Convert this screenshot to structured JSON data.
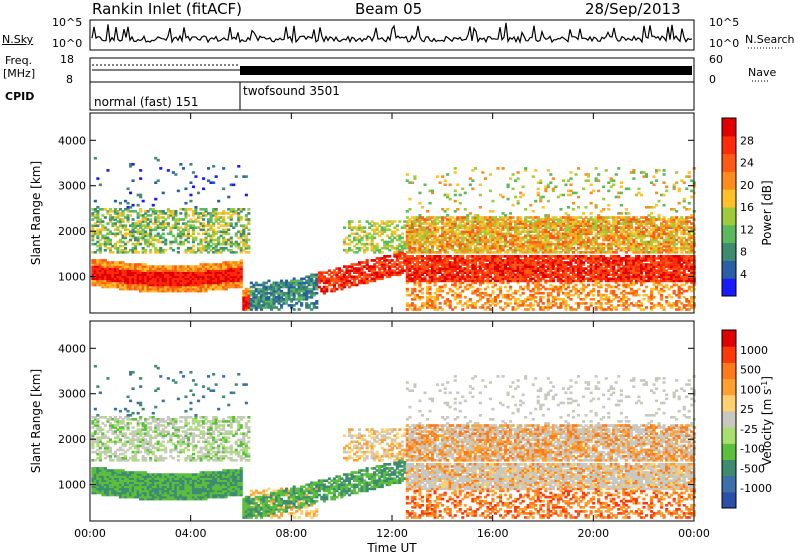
{
  "header": {
    "station": "Rankin Inlet (fitACF)",
    "beam": "Beam 05",
    "date": "28/Sep/2013"
  },
  "summary_panels": {
    "nsky_label": "N.Sky",
    "nsearch_label": "N.Search",
    "nsky_ticks": [
      "10^5",
      "10^0"
    ],
    "nsearch_ticks": [
      "10^5",
      "10^0"
    ],
    "freq_label_line1": "Freq.",
    "freq_label_line2": "[MHz]",
    "freq_ticks": [
      "18",
      "8"
    ],
    "nave_label": "Nave",
    "nave_ticks": [
      "60",
      "0"
    ],
    "cpid_label": "CPID",
    "cpid_modes": [
      "normal (fast) 151",
      "twofsound 3501"
    ]
  },
  "colorbars": {
    "power_label": "Power [dB]",
    "power_ticks": [
      "28",
      "24",
      "20",
      "16",
      "12",
      "8",
      "4"
    ],
    "power_colors": [
      "#1a1aff",
      "#2a5fa8",
      "#3d8c70",
      "#5cb85c",
      "#9ccc3c",
      "#ffc02a",
      "#ff8c1a",
      "#ff5a14",
      "#ff2a0a",
      "#e00000"
    ],
    "velocity_label": "Velocity [m s",
    "velocity_label_sup": "-1",
    "velocity_label_end": "]",
    "velocity_ticks": [
      "1000",
      "500",
      "100",
      "25",
      "-25",
      "-100",
      "-500",
      "-1000"
    ],
    "velocity_colors": [
      "#2a4fa8",
      "#3d6fa8",
      "#3d8c70",
      "#5cbf3c",
      "#a8e070",
      "#c8c8c0",
      "#ffd070",
      "#ffa030",
      "#ff7a1a",
      "#ff3a0a",
      "#e00000"
    ]
  },
  "chart_data": [
    {
      "type": "heatmap",
      "title": "",
      "ylabel": "Slant Range [km]",
      "ytick_labels": [
        "1000",
        "2000",
        "3000",
        "4000"
      ],
      "ylim": [
        200,
        4600
      ],
      "xlim": [
        "00:00",
        "24:00"
      ],
      "colorbar": "Power [dB]"
    },
    {
      "type": "heatmap",
      "title": "",
      "xlabel": "Time UT",
      "ylabel": "Slant Range [km]",
      "ytick_labels": [
        "1000",
        "2000",
        "3000",
        "4000"
      ],
      "xtick_labels": [
        "00:00",
        "04:00",
        "08:00",
        "12:00",
        "16:00",
        "20:00",
        "00:00"
      ],
      "ylim": [
        200,
        4600
      ],
      "xlim": [
        "00:00",
        "24:00"
      ],
      "colorbar": "Velocity [m s-1]"
    }
  ]
}
